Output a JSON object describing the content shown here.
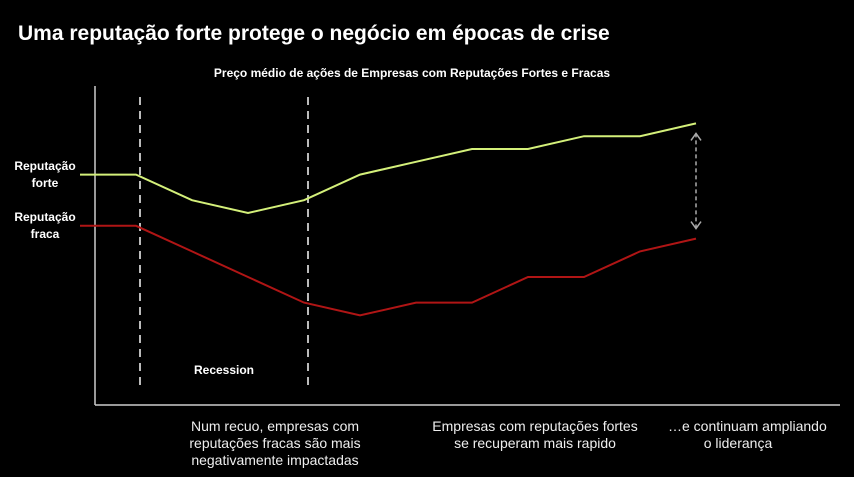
{
  "page": {
    "title": "Uma reputação forte protege o negócio em épocas de crise"
  },
  "chart_data": {
    "type": "line",
    "title": "Preço médio de ações de Empresas com Reputações Fortes e Fracas",
    "xlabel": "",
    "ylabel": "",
    "x": [
      0,
      1,
      2,
      3,
      4,
      5,
      6,
      7,
      8,
      9,
      10,
      11
    ],
    "ylim": [
      0,
      100
    ],
    "grid": false,
    "series": [
      {
        "name": "Reputação forte",
        "label_lines": [
          "Reputação",
          "forte"
        ],
        "color": "#d4f07a",
        "values": [
          72,
          72,
          64,
          60,
          64,
          72,
          76,
          80,
          80,
          84,
          84,
          88
        ]
      },
      {
        "name": "Reputação fraca",
        "label_lines": [
          "Reputação",
          "fraca"
        ],
        "color": "#b01515",
        "values": [
          56,
          56,
          48,
          40,
          32,
          28,
          32,
          32,
          40,
          40,
          48,
          52
        ]
      }
    ],
    "recession": {
      "label": "Recession",
      "start": 1,
      "end": 4
    },
    "gap_arrow_at": 11
  },
  "captions": [
    {
      "lines": [
        "Num recuo, empresas com",
        "reputações fracas são mais",
        "negativamente impactadas"
      ]
    },
    {
      "lines": [
        "Empresas com reputações fortes",
        "se recuperam mais rapido"
      ]
    },
    {
      "lines": [
        "…e continuam ampliando",
        "o liderança"
      ]
    }
  ],
  "colors": {
    "background": "#000000",
    "axis": "#cccccc",
    "dashed": "#bbbbbb",
    "arrow": "#aaaaaa"
  }
}
